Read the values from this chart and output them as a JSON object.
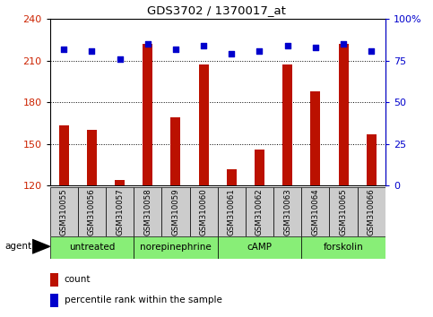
{
  "title": "GDS3702 / 1370017_at",
  "samples": [
    "GSM310055",
    "GSM310056",
    "GSM310057",
    "GSM310058",
    "GSM310059",
    "GSM310060",
    "GSM310061",
    "GSM310062",
    "GSM310063",
    "GSM310064",
    "GSM310065",
    "GSM310066"
  ],
  "counts": [
    163,
    160,
    124,
    222,
    169,
    207,
    132,
    146,
    207,
    188,
    222,
    157
  ],
  "percentile": [
    82,
    81,
    76,
    85,
    82,
    84,
    79,
    81,
    84,
    83,
    85,
    81
  ],
  "ylim_left": [
    120,
    240
  ],
  "ylim_right": [
    0,
    100
  ],
  "yticks_left": [
    120,
    150,
    180,
    210,
    240
  ],
  "yticks_right": [
    0,
    25,
    50,
    75,
    100
  ],
  "ytick_labels_right": [
    "0",
    "25",
    "50",
    "75",
    "100%"
  ],
  "bar_color": "#bb1100",
  "scatter_color": "#0000cc",
  "agent_groups": [
    {
      "label": "untreated",
      "start": 0,
      "end": 3
    },
    {
      "label": "norepinephrine",
      "start": 3,
      "end": 6
    },
    {
      "label": "cAMP",
      "start": 6,
      "end": 9
    },
    {
      "label": "forskolin",
      "start": 9,
      "end": 12
    }
  ],
  "agent_bg_color": "#88ee77",
  "sample_bg_color": "#cccccc",
  "left_axis_color": "#cc2200",
  "right_axis_color": "#0000cc",
  "legend_count_color": "#bb1100",
  "legend_pct_color": "#0000cc",
  "agent_label": "agent",
  "legend_count_label": "count",
  "legend_pct_label": "percentile rank within the sample",
  "bar_width": 0.35,
  "ybase": 120
}
